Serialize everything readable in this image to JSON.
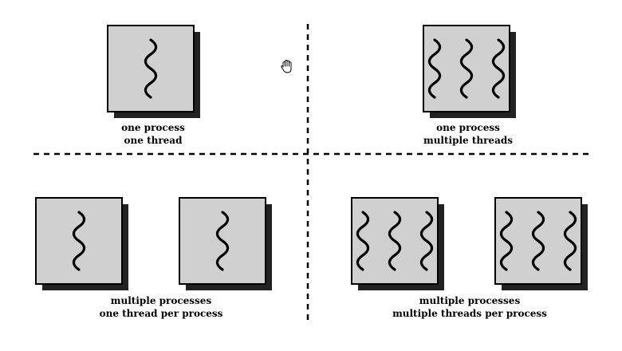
{
  "captions": {
    "q1": {
      "line1": "one process",
      "line2": "one thread"
    },
    "q2": {
      "line1": "one process",
      "line2": "multiple threads"
    },
    "q3": {
      "line1": "multiple processes",
      "line2": "one thread per process"
    },
    "q4": {
      "line1": "multiple processes",
      "line2": "multiple threads per process"
    }
  },
  "quadrants": [
    {
      "name": "one-process-one-thread",
      "processes": 1,
      "threads_per_process": 1
    },
    {
      "name": "one-process-multiple-threads",
      "processes": 1,
      "threads_per_process": 3
    },
    {
      "name": "multiple-processes-one-thread",
      "processes": 2,
      "threads_per_process": 1
    },
    {
      "name": "multiple-processes-multiple-threads",
      "processes": 2,
      "threads_per_process": 3
    }
  ],
  "colors": {
    "process_fill": "#d0d0d0",
    "process_border": "#000000",
    "process_shadow": "#222222",
    "thread": "#000000",
    "divider": "#000000",
    "background": "#ffffff"
  },
  "icons": {
    "cursor": "hand-cursor-icon",
    "thread": "wavy-thread-icon"
  }
}
